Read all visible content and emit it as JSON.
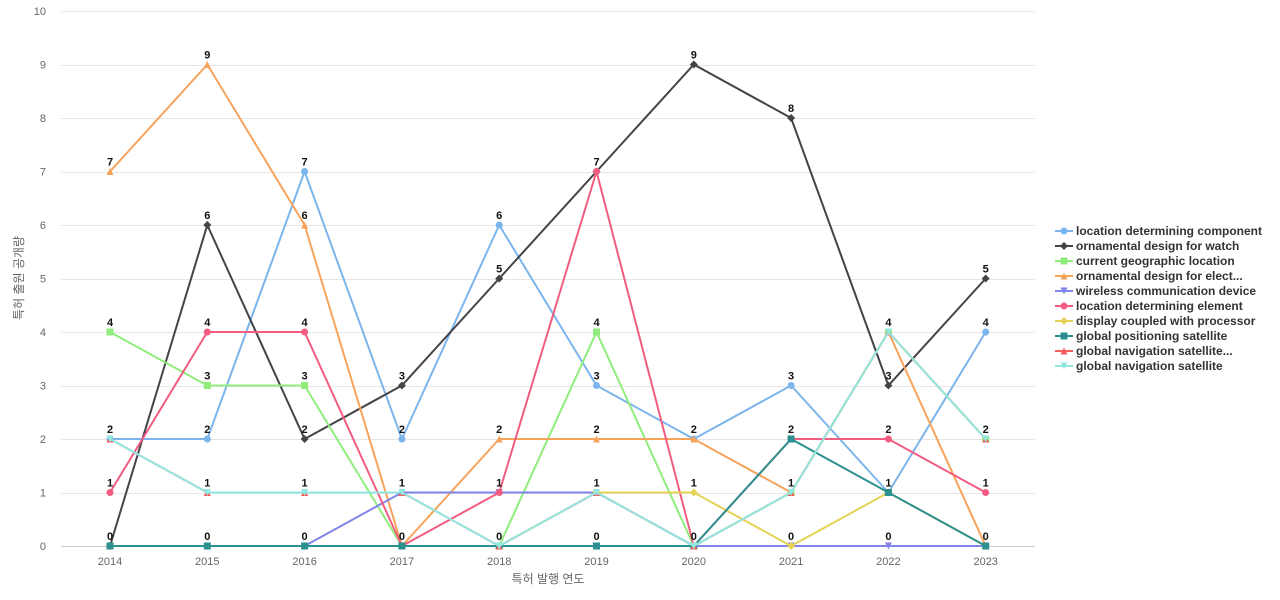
{
  "chart_data": {
    "type": "line",
    "xlabel": "특허 발행 연도",
    "ylabel": "특허 출원 공개량",
    "ylim": [
      0,
      10
    ],
    "yticks": [
      0,
      1,
      2,
      3,
      4,
      5,
      6,
      7,
      8,
      9,
      10
    ],
    "grid": true,
    "legend_position": "right",
    "categories": [
      "2014",
      "2015",
      "2016",
      "2017",
      "2018",
      "2019",
      "2020",
      "2021",
      "2022",
      "2023"
    ],
    "series": [
      {
        "name": "location determining component",
        "color": "#7cb5ec",
        "marker": "circle",
        "values": [
          2,
          2,
          7,
          2,
          6,
          3,
          2,
          3,
          1,
          4
        ]
      },
      {
        "name": "ornamental design for watch",
        "color": "#434348",
        "marker": "diamond",
        "values": [
          0,
          6,
          2,
          3,
          5,
          7,
          9,
          8,
          3,
          5
        ]
      },
      {
        "name": "current geographic location",
        "color": "#90ed7d",
        "marker": "square",
        "values": [
          4,
          3,
          3,
          0,
          0,
          4,
          0,
          1,
          4,
          2
        ]
      },
      {
        "name": "ornamental design for elect...",
        "color": "#f7a35c",
        "marker": "triangle",
        "values": [
          7,
          9,
          6,
          0,
          2,
          2,
          2,
          1,
          4,
          0
        ]
      },
      {
        "name": "wireless communication device",
        "color": "#8085e9",
        "marker": "triangle-down",
        "values": [
          0,
          0,
          0,
          1,
          1,
          1,
          0,
          0,
          0,
          0
        ]
      },
      {
        "name": "location determining element",
        "color": "#f15c80",
        "marker": "circle",
        "values": [
          1,
          4,
          4,
          0,
          1,
          7,
          0,
          2,
          2,
          1
        ]
      },
      {
        "name": "display coupled with processor",
        "color": "#e4d354",
        "marker": "diamond",
        "values": [
          0,
          0,
          0,
          0,
          0,
          1,
          1,
          0,
          1,
          0
        ]
      },
      {
        "name": "global positioning satellite",
        "color": "#2b908f",
        "marker": "square",
        "values": [
          0,
          0,
          0,
          0,
          0,
          0,
          0,
          2,
          1,
          0
        ]
      },
      {
        "name": "global navigation satellite...",
        "color": "#f45b5b",
        "marker": "triangle",
        "values": [
          2,
          1,
          1,
          1,
          0,
          1,
          0,
          1,
          4,
          2
        ]
      },
      {
        "name": "global navigation satellite",
        "color": "#91e8e1",
        "marker": "triangle-down",
        "values": [
          2,
          1,
          1,
          1,
          0,
          1,
          0,
          1,
          4,
          2
        ]
      }
    ],
    "data_labels": [
      [
        {
          "x": 0,
          "t": "7"
        },
        {
          "x": 0,
          "t": "4"
        },
        {
          "x": 0,
          "t": "2"
        },
        {
          "x": 0,
          "t": "1"
        },
        {
          "x": 0,
          "t": "0"
        }
      ],
      [
        {
          "x": 1,
          "t": "9"
        },
        {
          "x": 1,
          "t": "6"
        },
        {
          "x": 1,
          "t": "4"
        },
        {
          "x": 1,
          "t": "3"
        },
        {
          "x": 1,
          "t": "2"
        },
        {
          "x": 1,
          "t": "1"
        },
        {
          "x": 1,
          "t": "0"
        }
      ],
      [
        {
          "x": 2,
          "t": "7"
        },
        {
          "x": 2,
          "t": "6"
        },
        {
          "x": 2,
          "t": "4"
        },
        {
          "x": 2,
          "t": "3"
        },
        {
          "x": 2,
          "t": "2"
        },
        {
          "x": 2,
          "t": "1"
        },
        {
          "x": 2,
          "t": "0"
        }
      ],
      [
        {
          "x": 3,
          "t": "3"
        },
        {
          "x": 3,
          "t": "2"
        },
        {
          "x": 3,
          "t": "1"
        },
        {
          "x": 3,
          "t": "0"
        }
      ],
      [
        {
          "x": 4,
          "t": "6"
        },
        {
          "x": 4,
          "t": "5"
        },
        {
          "x": 4,
          "t": "2"
        },
        {
          "x": 4,
          "t": "1"
        },
        {
          "x": 4,
          "t": "0"
        }
      ],
      [
        {
          "x": 5,
          "t": "7"
        },
        {
          "x": 5,
          "t": "4"
        },
        {
          "x": 5,
          "t": "3"
        },
        {
          "x": 5,
          "t": "2"
        },
        {
          "x": 5,
          "t": "1"
        },
        {
          "x": 5,
          "t": "0"
        }
      ],
      [
        {
          "x": 6,
          "t": "9"
        },
        {
          "x": 6,
          "t": "2"
        },
        {
          "x": 6,
          "t": "1"
        },
        {
          "x": 6,
          "t": "0"
        }
      ],
      [
        {
          "x": 7,
          "t": "8"
        },
        {
          "x": 7,
          "t": "3"
        },
        {
          "x": 7,
          "t": "2"
        },
        {
          "x": 7,
          "t": "1"
        },
        {
          "x": 7,
          "t": "0"
        }
      ],
      [
        {
          "x": 8,
          "t": "4"
        },
        {
          "x": 8,
          "t": "3"
        },
        {
          "x": 8,
          "t": "2"
        },
        {
          "x": 8,
          "t": "1"
        },
        {
          "x": 8,
          "t": "0"
        }
      ],
      [
        {
          "x": 9,
          "t": "5"
        },
        {
          "x": 9,
          "t": "4"
        },
        {
          "x": 9,
          "t": "2"
        },
        {
          "x": 9,
          "t": "1"
        },
        {
          "x": 9,
          "t": "0"
        }
      ]
    ]
  }
}
